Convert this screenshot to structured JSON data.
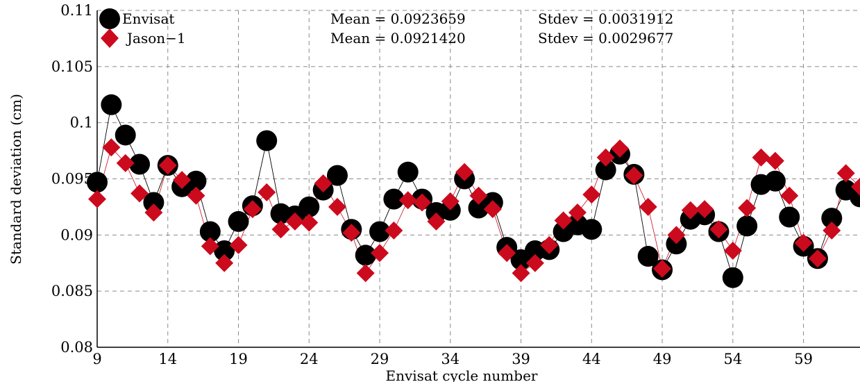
{
  "chart_data": {
    "type": "line",
    "xlabel": "Envisat cycle number",
    "ylabel": "Standard deviation (cm)",
    "xlim": [
      9,
      63
    ],
    "ylim": [
      0.08,
      0.11
    ],
    "xticks": [
      9,
      14,
      19,
      24,
      29,
      34,
      39,
      44,
      49,
      54,
      59
    ],
    "xtick_labels": [
      "9",
      "14",
      "19",
      "24",
      "29",
      "34",
      "39",
      "44",
      "49",
      "54",
      "59"
    ],
    "yticks": [
      0.08,
      0.085,
      0.09,
      0.095,
      0.1,
      0.105,
      0.11
    ],
    "ytick_labels": [
      "0.08",
      "0.085",
      "0.09",
      "0.095",
      "0.1",
      "0.105",
      "0.11"
    ],
    "grid": true,
    "legend_position": "top-left",
    "series": [
      {
        "name": "Envisat",
        "color": "#000000",
        "marker": "circle",
        "x": [
          9,
          10,
          11,
          12,
          13,
          14,
          15,
          16,
          17,
          18,
          19,
          20,
          21,
          22,
          23,
          24,
          25,
          26,
          27,
          28,
          29,
          30,
          31,
          32,
          33,
          34,
          35,
          36,
          37,
          38,
          39,
          40,
          41,
          42,
          43,
          44,
          45,
          46,
          47,
          48,
          49,
          50,
          51,
          52,
          53,
          54,
          55,
          56,
          57,
          58,
          59,
          60,
          61,
          62,
          63
        ],
        "values": [
          0.0947,
          0.1016,
          0.0989,
          0.0963,
          0.0929,
          0.0962,
          0.0943,
          0.0948,
          0.0903,
          0.0886,
          0.0912,
          0.0926,
          0.0984,
          0.0919,
          0.0917,
          0.0925,
          0.094,
          0.0953,
          0.0905,
          0.0882,
          0.0903,
          0.0932,
          0.0956,
          0.0932,
          0.092,
          0.0922,
          0.095,
          0.0924,
          0.0929,
          0.0889,
          0.0878,
          0.0886,
          0.0887,
          0.0903,
          0.0909,
          0.0905,
          0.0958,
          0.0972,
          0.0954,
          0.0881,
          0.0869,
          0.0892,
          0.0914,
          0.0918,
          0.0903,
          0.0862,
          0.0908,
          0.0945,
          0.0948,
          0.0916,
          0.089,
          0.0879,
          0.0915,
          0.094,
          0.0934
        ]
      },
      {
        "name": "Jason−1",
        "color": "#cc0a1e",
        "marker": "diamond",
        "x": [
          9,
          10,
          11,
          12,
          13,
          14,
          15,
          16,
          17,
          18,
          19,
          20,
          21,
          22,
          23,
          24,
          25,
          26,
          27,
          28,
          29,
          30,
          31,
          32,
          33,
          34,
          35,
          36,
          37,
          38,
          39,
          40,
          41,
          42,
          43,
          44,
          45,
          46,
          47,
          48,
          49,
          50,
          51,
          52,
          53,
          54,
          55,
          56,
          57,
          58,
          59,
          60,
          61,
          62,
          63
        ],
        "values": [
          0.0932,
          0.0978,
          0.0964,
          0.0937,
          0.092,
          0.0962,
          0.0949,
          0.0935,
          0.089,
          0.0875,
          0.0891,
          0.0923,
          0.0938,
          0.0905,
          0.0912,
          0.0911,
          0.0946,
          0.0925,
          0.0902,
          0.0866,
          0.0884,
          0.0904,
          0.0931,
          0.0929,
          0.0912,
          0.093,
          0.0956,
          0.0935,
          0.0923,
          0.0884,
          0.0866,
          0.0875,
          0.0891,
          0.0913,
          0.092,
          0.0936,
          0.0969,
          0.0977,
          0.0953,
          0.0925,
          0.087,
          0.09,
          0.0922,
          0.0923,
          0.0905,
          0.0886,
          0.0924,
          0.0969,
          0.0966,
          0.0935,
          0.0893,
          0.0879,
          0.0904,
          0.0955,
          0.0943
        ]
      }
    ],
    "annotations": [
      {
        "series": "Envisat",
        "mean_text": "Mean = 0.0923659",
        "stdev_text": "Stdev = 0.0031912"
      },
      {
        "series": "Jason−1",
        "mean_text": "Mean = 0.0921420",
        "stdev_text": "Stdev = 0.0029677"
      }
    ]
  }
}
